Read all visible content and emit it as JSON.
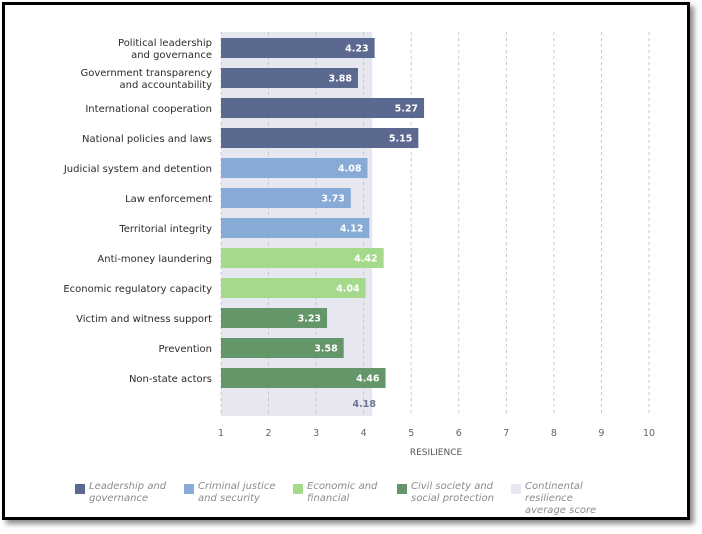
{
  "chart_data": {
    "type": "bar",
    "orientation": "horizontal",
    "title": "",
    "xlabel": "RESILIENCE",
    "ylabel": "",
    "xlim": [
      1,
      10
    ],
    "xticks": [
      "1",
      "2",
      "3",
      "4",
      "5",
      "6",
      "7",
      "8",
      "9",
      "10"
    ],
    "grid": "vertical dashed",
    "categories": [
      [
        "Political leadership",
        "and governance"
      ],
      [
        "Government transparency",
        "and accountability"
      ],
      [
        "International cooperation"
      ],
      [
        "National policies and laws"
      ],
      [
        "Judicial system and detention"
      ],
      [
        "Law enforcement"
      ],
      [
        "Territorial integrity"
      ],
      [
        "Anti-money laundering"
      ],
      [
        "Economic regulatory capacity"
      ],
      [
        "Victim and witness support"
      ],
      [
        "Prevention"
      ],
      [
        "Non-state actors"
      ]
    ],
    "values": [
      4.23,
      3.88,
      5.27,
      5.15,
      4.08,
      3.73,
      4.12,
      4.42,
      4.04,
      3.23,
      3.58,
      4.46
    ],
    "value_labels": [
      "4.23",
      "3.88",
      "5.27",
      "5.15",
      "4.08",
      "3.73",
      "4.12",
      "4.42",
      "4.04",
      "3.23",
      "3.58",
      "4.46"
    ],
    "groups": [
      0,
      0,
      0,
      0,
      1,
      1,
      1,
      2,
      2,
      3,
      3,
      3
    ],
    "average": {
      "value": 4.18,
      "label": "4.18"
    },
    "legend_position": "bottom"
  },
  "legend": [
    {
      "label": "Leadership and governance",
      "color": "#5b6890"
    },
    {
      "label": "Criminal justice and security",
      "color": "#87aad6"
    },
    {
      "label": "Economic and financial",
      "color": "#a5d98c"
    },
    {
      "label": "Civil society and social protection",
      "color": "#65966a"
    },
    {
      "label": "Continental resilience average score",
      "color": "#e7e7ef"
    }
  ]
}
